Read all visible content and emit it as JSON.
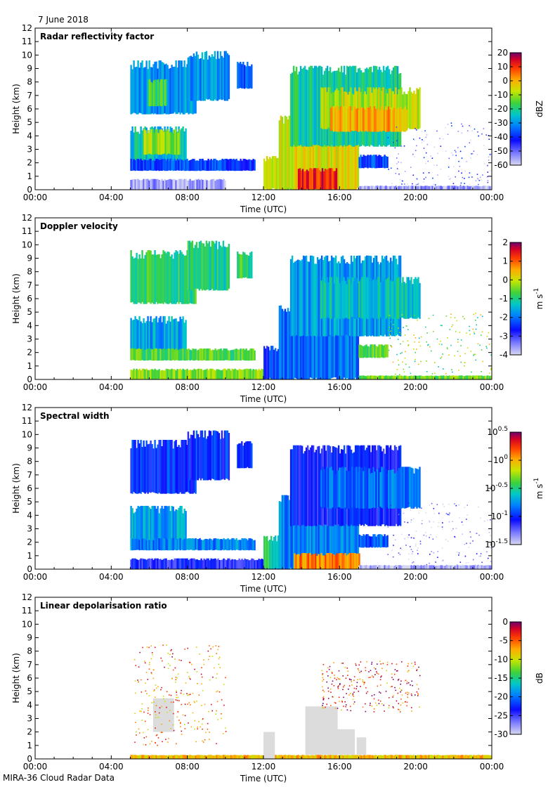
{
  "header": {
    "date": "7 June 2018"
  },
  "footer": {
    "source": "MIRA-36 Cloud Radar Data"
  },
  "chart_data": [
    {
      "type": "heatmap",
      "title": "Radar reflectivity factor",
      "xlabel": "Time (UTC)",
      "ylabel": "Height (km)",
      "x_ticks": [
        "00:00",
        "04:00",
        "08:00",
        "12:00",
        "16:00",
        "20:00",
        "00:00"
      ],
      "ylim": [
        0,
        12
      ],
      "y_ticks": [
        0,
        1,
        2,
        3,
        4,
        5,
        6,
        7,
        8,
        9,
        10,
        11,
        12
      ],
      "colorbar": {
        "unit": "dBZ",
        "min": -60,
        "max": 20,
        "ticks": [
          "20",
          "10",
          "0",
          "-10",
          "-20",
          "-30",
          "-40",
          "-50",
          "-60"
        ]
      },
      "echoes": [
        {
          "t0": 5.0,
          "t1": 8.4,
          "h0": 5.6,
          "h1": 9.6,
          "v": -30
        },
        {
          "t0": 5.9,
          "t1": 6.9,
          "h0": 6.2,
          "h1": 8.2,
          "v": -18
        },
        {
          "t0": 8.0,
          "t1": 10.2,
          "h0": 6.6,
          "h1": 10.3,
          "v": -30
        },
        {
          "t0": 10.6,
          "t1": 11.4,
          "h0": 7.5,
          "h1": 9.5,
          "v": -35
        },
        {
          "t0": 5.0,
          "t1": 7.9,
          "h0": 1.5,
          "h1": 4.7,
          "v": -25
        },
        {
          "t0": 5.7,
          "t1": 7.6,
          "h0": 2.6,
          "h1": 4.5,
          "v": -10
        },
        {
          "t0": 5.0,
          "t1": 11.5,
          "h0": 1.4,
          "h1": 2.3,
          "v": -38
        },
        {
          "t0": 5.0,
          "t1": 10.0,
          "h0": 0.0,
          "h1": 0.8,
          "v": -55
        },
        {
          "t0": 12.0,
          "t1": 13.5,
          "h0": 0.0,
          "h1": 2.5,
          "v": -8
        },
        {
          "t0": 12.8,
          "t1": 17.0,
          "h0": 0.0,
          "h1": 5.5,
          "v": -5
        },
        {
          "t0": 13.8,
          "t1": 15.8,
          "h0": 0.0,
          "h1": 1.6,
          "v": 12
        },
        {
          "t0": 13.4,
          "t1": 19.2,
          "h0": 3.2,
          "h1": 9.2,
          "v": -22
        },
        {
          "t0": 15.0,
          "t1": 20.2,
          "h0": 4.5,
          "h1": 7.6,
          "v": -8
        },
        {
          "t0": 15.5,
          "t1": 19.5,
          "h0": 4.3,
          "h1": 6.2,
          "v": 0
        },
        {
          "t0": 17.0,
          "t1": 18.5,
          "h0": 1.6,
          "h1": 2.6,
          "v": -38
        },
        {
          "t0": 17.0,
          "t1": 24.0,
          "h0": 0.0,
          "h1": 0.3,
          "v": -55
        },
        {
          "t0": 18.5,
          "t1": 24.0,
          "h0": 0.3,
          "h1": 5.0,
          "v": -50
        }
      ]
    },
    {
      "type": "heatmap",
      "title": "Doppler velocity",
      "xlabel": "Time (UTC)",
      "ylabel": "Height (km)",
      "x_ticks": [
        "00:00",
        "04:00",
        "08:00",
        "12:00",
        "16:00",
        "20:00",
        "00:00"
      ],
      "ylim": [
        0,
        12
      ],
      "y_ticks": [
        0,
        1,
        2,
        3,
        4,
        5,
        6,
        7,
        8,
        9,
        10,
        11,
        12
      ],
      "colorbar": {
        "unit": "m s-1",
        "min": -4,
        "max": 2,
        "ticks": [
          "2",
          "1",
          "0",
          "-1",
          "-2",
          "-3",
          "-4"
        ]
      },
      "echoes": [
        {
          "t0": 5.0,
          "t1": 8.4,
          "h0": 5.6,
          "h1": 9.6,
          "v": -0.9
        },
        {
          "t0": 8.0,
          "t1": 10.2,
          "h0": 6.6,
          "h1": 10.3,
          "v": -1.0
        },
        {
          "t0": 10.6,
          "t1": 11.4,
          "h0": 7.5,
          "h1": 9.5,
          "v": -0.9
        },
        {
          "t0": 5.0,
          "t1": 7.9,
          "h0": 1.5,
          "h1": 4.7,
          "v": -1.6
        },
        {
          "t0": 5.0,
          "t1": 11.5,
          "h0": 1.4,
          "h1": 2.3,
          "v": -0.7
        },
        {
          "t0": 5.0,
          "t1": 13.0,
          "h0": 0.0,
          "h1": 0.8,
          "v": -0.4
        },
        {
          "t0": 12.0,
          "t1": 13.5,
          "h0": 0.0,
          "h1": 2.5,
          "v": -2.5
        },
        {
          "t0": 12.8,
          "t1": 17.0,
          "h0": 0.0,
          "h1": 5.5,
          "v": -2.0
        },
        {
          "t0": 13.4,
          "t1": 19.2,
          "h0": 3.2,
          "h1": 9.2,
          "v": -1.7
        },
        {
          "t0": 15.0,
          "t1": 20.2,
          "h0": 4.5,
          "h1": 7.6,
          "v": -1.3
        },
        {
          "t0": 17.0,
          "t1": 18.5,
          "h0": 1.6,
          "h1": 2.6,
          "v": -0.6
        },
        {
          "t0": 17.0,
          "t1": 24.0,
          "h0": 0.0,
          "h1": 0.3,
          "v": -0.5
        },
        {
          "t0": 18.5,
          "t1": 24.0,
          "h0": 0.3,
          "h1": 5.0,
          "v": -0.5
        }
      ]
    },
    {
      "type": "heatmap",
      "title": "Spectral width",
      "xlabel": "Time (UTC)",
      "ylabel": "Height (km)",
      "x_ticks": [
        "00:00",
        "04:00",
        "08:00",
        "12:00",
        "16:00",
        "20:00",
        "00:00"
      ],
      "ylim": [
        0,
        12
      ],
      "y_ticks": [
        0,
        1,
        2,
        3,
        4,
        5,
        6,
        7,
        8,
        9,
        10,
        11,
        12
      ],
      "colorbar": {
        "unit": "m s-1",
        "scale": "log10",
        "min": -1.5,
        "max": 0.5,
        "ticks": [
          "0.5",
          "0",
          "-0.5",
          "-1",
          "-1.5"
        ]
      },
      "echoes": [
        {
          "t0": 5.0,
          "t1": 8.4,
          "h0": 5.6,
          "h1": 9.6,
          "v": -1.0
        },
        {
          "t0": 8.0,
          "t1": 10.2,
          "h0": 6.6,
          "h1": 10.3,
          "v": -1.0
        },
        {
          "t0": 10.6,
          "t1": 11.4,
          "h0": 7.5,
          "h1": 9.5,
          "v": -1.0
        },
        {
          "t0": 5.0,
          "t1": 7.9,
          "h0": 1.5,
          "h1": 4.7,
          "v": -0.7
        },
        {
          "t0": 5.0,
          "t1": 11.5,
          "h0": 1.4,
          "h1": 2.3,
          "v": -0.8
        },
        {
          "t0": 5.0,
          "t1": 13.0,
          "h0": 0.0,
          "h1": 0.8,
          "v": -1.1
        },
        {
          "t0": 12.0,
          "t1": 13.5,
          "h0": 0.0,
          "h1": 2.5,
          "v": -0.5
        },
        {
          "t0": 12.8,
          "t1": 17.0,
          "h0": 0.0,
          "h1": 5.5,
          "v": -0.8
        },
        {
          "t0": 13.6,
          "t1": 17.0,
          "h0": 0.0,
          "h1": 1.2,
          "v": 0.1
        },
        {
          "t0": 13.4,
          "t1": 19.2,
          "h0": 3.2,
          "h1": 9.2,
          "v": -1.05
        },
        {
          "t0": 15.0,
          "t1": 20.2,
          "h0": 4.5,
          "h1": 7.6,
          "v": -0.85
        },
        {
          "t0": 17.0,
          "t1": 18.5,
          "h0": 1.6,
          "h1": 2.6,
          "v": -0.9
        },
        {
          "t0": 17.0,
          "t1": 24.0,
          "h0": 0.0,
          "h1": 0.3,
          "v": -1.4
        },
        {
          "t0": 18.5,
          "t1": 24.0,
          "h0": 0.3,
          "h1": 5.0,
          "v": -1.4
        }
      ]
    },
    {
      "type": "heatmap",
      "title": "Linear depolarisation ratio",
      "xlabel": "Time (UTC)",
      "ylabel": "Height (km)",
      "x_ticks": [
        "00:00",
        "04:00",
        "08:00",
        "12:00",
        "16:00",
        "20:00",
        "00:00"
      ],
      "ylim": [
        0,
        12
      ],
      "y_ticks": [
        0,
        1,
        2,
        3,
        4,
        5,
        6,
        7,
        8,
        9,
        10,
        11,
        12
      ],
      "colorbar": {
        "unit": "dB",
        "min": -30,
        "max": 0,
        "ticks": [
          "0",
          "-5",
          "-10",
          "-15",
          "-20",
          "-25",
          "-30"
        ]
      },
      "echoes": [
        {
          "t0": 5.0,
          "t1": 24.0,
          "h0": 0.0,
          "h1": 0.3,
          "v": -8
        },
        {
          "t0": 6.2,
          "t1": 7.3,
          "h0": 2.0,
          "h1": 4.5,
          "v": null
        },
        {
          "t0": 12.0,
          "t1": 12.6,
          "h0": 0.0,
          "h1": 2.0,
          "v": null
        },
        {
          "t0": 14.2,
          "t1": 15.9,
          "h0": 0.3,
          "h1": 3.9,
          "v": null
        },
        {
          "t0": 15.7,
          "t1": 16.8,
          "h0": 0.3,
          "h1": 2.2,
          "v": null
        },
        {
          "t0": 16.9,
          "t1": 17.4,
          "h0": 0.3,
          "h1": 1.6,
          "v": null
        },
        {
          "t0": 15.0,
          "t1": 20.2,
          "h0": 3.5,
          "h1": 7.3,
          "v": -4
        },
        {
          "t0": 5.2,
          "t1": 10.0,
          "h0": 1.0,
          "h1": 8.5,
          "v": -6
        }
      ]
    }
  ]
}
